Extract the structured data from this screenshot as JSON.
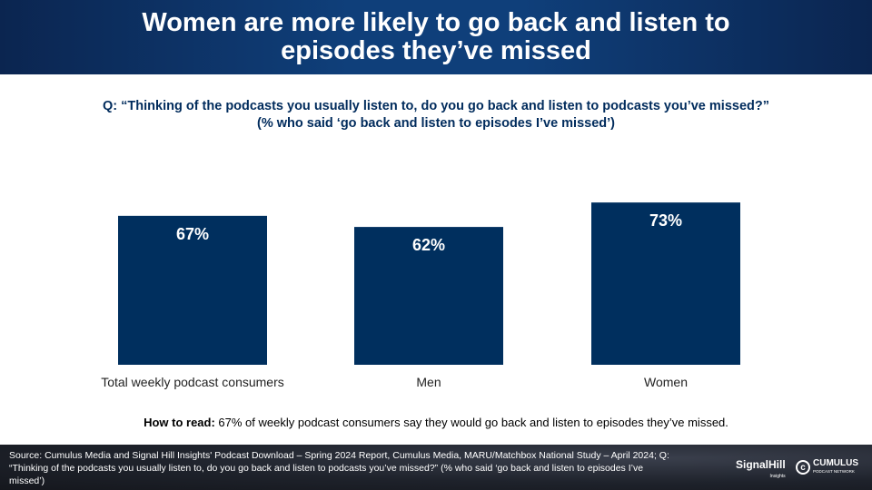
{
  "header": {
    "title": "Women are more likely to go back and listen to episodes they’ve missed"
  },
  "question": {
    "line1": "Q: “Thinking of the podcasts you usually listen to, do you go back and listen to podcasts you’ve missed?”",
    "line2": "(% who said ‘go back and listen to episodes I’ve missed’)"
  },
  "chart_data": {
    "type": "bar",
    "categories": [
      "Total weekly podcast consumers",
      "Men",
      "Women"
    ],
    "values": [
      67,
      62,
      73
    ],
    "data_labels": [
      "67%",
      "62%",
      "73%"
    ],
    "title": "",
    "xlabel": "",
    "ylabel": "",
    "ylim": [
      0,
      90
    ],
    "bar_color": "#002f5e",
    "grid": false,
    "legend": "none"
  },
  "how_to_read": {
    "label": "How to read:",
    "text": " 67% of weekly podcast consumers say they would go back and listen to episodes they’ve missed."
  },
  "footer": {
    "source": "Source: Cumulus Media and Signal Hill Insights' Podcast Download – Spring 2024 Report, Cumulus Media, MARU/Matchbox National Study – April 2024; Q: “Thinking of the podcasts you usually listen to, do you go back and listen to podcasts you’ve missed?” (% who said ‘go back and listen to episodes I’ve missed’)",
    "logo_signalhill": "SignalHill",
    "logo_signalhill_sub": "Insights",
    "logo_cumulus": "CUMULUS",
    "logo_cumulus_sub": "PODCAST NETWORK"
  }
}
